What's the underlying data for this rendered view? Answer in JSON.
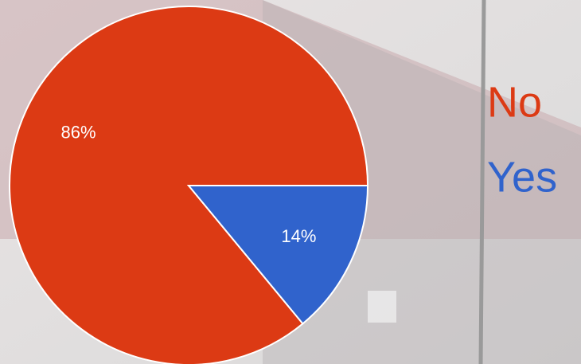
{
  "chart_data": {
    "type": "pie",
    "categories": [
      "No",
      "Yes"
    ],
    "values": [
      86,
      14
    ],
    "value_labels": [
      "86%",
      "14%"
    ],
    "colors": [
      "#dc3a14",
      "#3063cc"
    ]
  }
}
